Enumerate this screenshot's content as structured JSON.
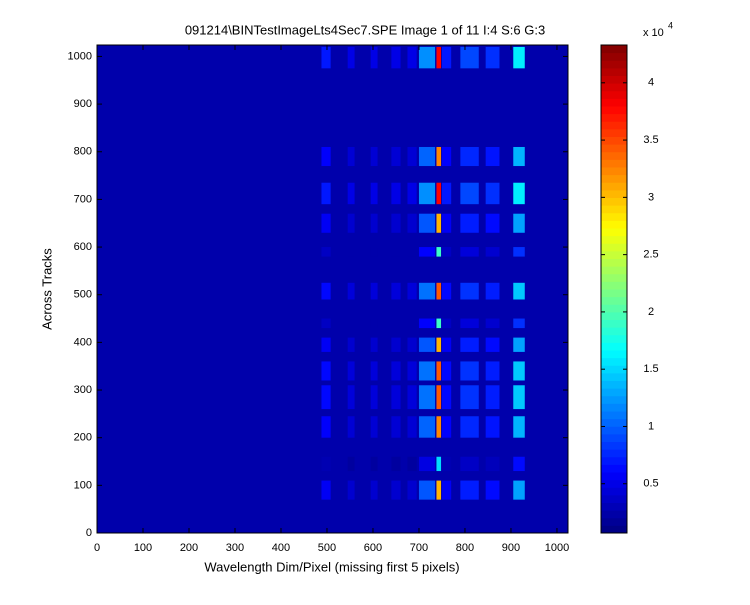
{
  "chart_data": {
    "type": "image",
    "title": "091214\\BINTestImageLts4Sec7.SPE  Image 1 of 11  I:4  S:6  G:3",
    "x_label": "Wavelength Dim/Pixel (missing first 5 pixels)",
    "y_label": "Across Tracks",
    "xlim": [
      0,
      1024
    ],
    "ylim": [
      0,
      1024
    ],
    "xticks": [
      0,
      100,
      200,
      300,
      400,
      500,
      600,
      700,
      800,
      900,
      1000
    ],
    "yticks": [
      0,
      100,
      200,
      300,
      400,
      500,
      600,
      700,
      800,
      900,
      1000
    ],
    "background_value": 2500,
    "columns": [
      {
        "x": [
          488,
          508
        ],
        "value": 7000
      },
      {
        "x": [
          545,
          560
        ],
        "value": 5000
      },
      {
        "x": [
          595,
          610
        ],
        "value": 5000
      },
      {
        "x": [
          640,
          660
        ],
        "value": 5000
      },
      {
        "x": [
          675,
          695
        ],
        "value": 5000
      },
      {
        "x": [
          700,
          735
        ],
        "value": 12000
      },
      {
        "x": [
          738,
          748
        ],
        "value": 38000
      },
      {
        "x": [
          750,
          770
        ],
        "value": 7000
      },
      {
        "x": [
          790,
          830
        ],
        "value": 9000
      },
      {
        "x": [
          845,
          875
        ],
        "value": 8000
      },
      {
        "x": [
          905,
          930
        ],
        "value": 16000
      }
    ],
    "rows": [
      {
        "y": [
          975,
          1020
        ],
        "weight": 1.0
      },
      {
        "y": [
          770,
          810
        ],
        "weight": 0.85
      },
      {
        "y": [
          690,
          735
        ],
        "weight": 1.0
      },
      {
        "y": [
          630,
          670
        ],
        "weight": 0.8
      },
      {
        "y": [
          580,
          600
        ],
        "weight": 0.5
      },
      {
        "y": [
          490,
          525
        ],
        "weight": 0.9
      },
      {
        "y": [
          430,
          450
        ],
        "weight": 0.5
      },
      {
        "y": [
          380,
          410
        ],
        "weight": 0.8
      },
      {
        "y": [
          320,
          360
        ],
        "weight": 0.9
      },
      {
        "y": [
          260,
          310
        ],
        "weight": 0.9
      },
      {
        "y": [
          200,
          245
        ],
        "weight": 0.85
      },
      {
        "y": [
          130,
          160
        ],
        "weight": 0.4
      },
      {
        "y": [
          70,
          110
        ],
        "weight": 0.8
      }
    ],
    "colorbar": {
      "clim": [
        700,
        43300
      ],
      "ticks": [
        {
          "value": 5000,
          "label": "0.5"
        },
        {
          "value": 10000,
          "label": "1"
        },
        {
          "value": 15000,
          "label": "1.5"
        },
        {
          "value": 20000,
          "label": "2"
        },
        {
          "value": 25000,
          "label": "2.5"
        },
        {
          "value": 30000,
          "label": "3"
        },
        {
          "value": 35000,
          "label": "3.5"
        },
        {
          "value": 40000,
          "label": "4"
        }
      ],
      "multiplier": "x 10",
      "exponent": "4"
    }
  }
}
